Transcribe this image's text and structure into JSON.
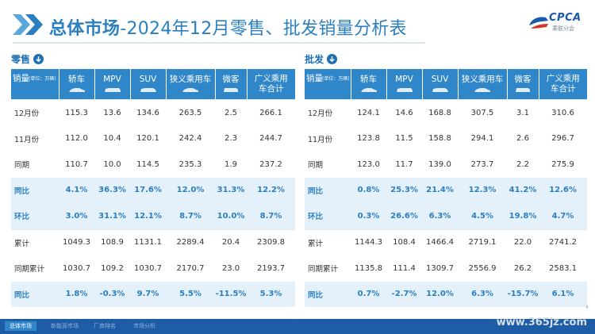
{
  "header": {
    "title_bold": "总体市场",
    "title_rest": "-2024年12月零售、批发销量分析表",
    "logo": "CPCA",
    "logo_sub": "乘联分会"
  },
  "columns": [
    "轿车",
    "MPV",
    "SUV",
    "狭义乘用车",
    "微客",
    "广义乘用车合计"
  ],
  "corner": {
    "main": "销量",
    "unit": "(单位：万辆)"
  },
  "retail": {
    "label": "零售",
    "rows": [
      {
        "name": "12月份",
        "values": [
          "115.3",
          "13.6",
          "134.6",
          "263.5",
          "2.5",
          "266.1"
        ],
        "highlight": false
      },
      {
        "name": "11月份",
        "values": [
          "112.0",
          "10.4",
          "120.1",
          "242.4",
          "2.3",
          "244.7"
        ],
        "highlight": false
      },
      {
        "name": "同期",
        "values": [
          "110.7",
          "10.0",
          "114.5",
          "235.3",
          "1.9",
          "237.2"
        ],
        "highlight": false
      },
      {
        "name": "同比",
        "values": [
          "4.1%",
          "36.3%",
          "17.6%",
          "12.0%",
          "31.3%",
          "12.2%"
        ],
        "highlight": true
      },
      {
        "name": "环比",
        "values": [
          "3.0%",
          "31.1%",
          "12.1%",
          "8.7%",
          "10.0%",
          "8.7%"
        ],
        "highlight": true
      },
      {
        "name": "累计",
        "values": [
          "1049.3",
          "108.9",
          "1131.1",
          "2289.4",
          "20.4",
          "2309.8"
        ],
        "highlight": false
      },
      {
        "name": "同期累计",
        "values": [
          "1030.7",
          "109.2",
          "1030.7",
          "2170.7",
          "23.0",
          "2193.7"
        ],
        "highlight": false
      },
      {
        "name": "同比",
        "values": [
          "1.8%",
          "-0.3%",
          "9.7%",
          "5.5%",
          "-11.5%",
          "5.3%"
        ],
        "highlight": true
      }
    ]
  },
  "wholesale": {
    "label": "批发",
    "rows": [
      {
        "name": "12月份",
        "values": [
          "124.1",
          "14.6",
          "168.8",
          "307.5",
          "3.1",
          "310.6"
        ],
        "highlight": false
      },
      {
        "name": "11月份",
        "values": [
          "123.8",
          "11.5",
          "158.8",
          "294.1",
          "2.6",
          "296.7"
        ],
        "highlight": false
      },
      {
        "name": "同期",
        "values": [
          "123.0",
          "11.7",
          "139.0",
          "273.7",
          "2.2",
          "275.9"
        ],
        "highlight": false
      },
      {
        "name": "同比",
        "values": [
          "0.8%",
          "25.3%",
          "21.4%",
          "12.3%",
          "41.2%",
          "12.6%"
        ],
        "highlight": true
      },
      {
        "name": "环比",
        "values": [
          "0.3%",
          "26.6%",
          "6.3%",
          "4.5%",
          "19.8%",
          "4.7%"
        ],
        "highlight": true
      },
      {
        "name": "累计",
        "values": [
          "1144.3",
          "108.4",
          "1466.4",
          "2719.1",
          "22.0",
          "2741.2"
        ],
        "highlight": false
      },
      {
        "name": "同期累计",
        "values": [
          "1135.8",
          "111.4",
          "1309.7",
          "2556.9",
          "26.2",
          "2583.1"
        ],
        "highlight": false
      },
      {
        "name": "同比",
        "values": [
          "0.7%",
          "-2.7%",
          "12.0%",
          "6.3%",
          "-15.7%",
          "6.1%"
        ],
        "highlight": true
      }
    ]
  },
  "footer": {
    "tabs": [
      "总体市场",
      "新能源市场",
      "厂商排名",
      "市场分析"
    ]
  },
  "watermark": "www.365jz.com",
  "page_number": "4",
  "colors": {
    "accent": "#2f86c9",
    "highlight_bg": "#e4f0fa",
    "title": "#2a7fc0",
    "footer": "#1e5da6"
  }
}
